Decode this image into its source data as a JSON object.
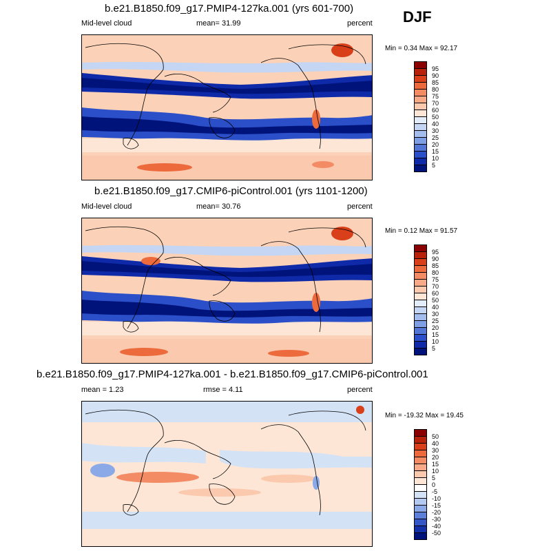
{
  "season": "DJF",
  "panels": [
    {
      "title": "b.e21.B1850.f09_g17.PMIP4-127ka.001 (yrs 601-700)",
      "left_label": "Mid-level cloud",
      "center_label": "mean=  31.99",
      "units": "percent",
      "minmax": "Min =  0.34 Max =  92.17",
      "colorbar": {
        "labels": [
          "95",
          "90",
          "85",
          "80",
          "75",
          "70",
          "60",
          "50",
          "40",
          "30",
          "25",
          "20",
          "15",
          "10",
          "5"
        ],
        "colors": [
          "#8b0000",
          "#b8210a",
          "#d9401a",
          "#ec6a3c",
          "#f38b64",
          "#f7a988",
          "#fbc9ae",
          "#fde6d6",
          "#e3edf9",
          "#c4d6f3",
          "#a3bdec",
          "#7e9fe4",
          "#5176d6",
          "#2b4fc8",
          "#0e2aa9",
          "#00137a"
        ]
      }
    },
    {
      "title": "b.e21.B1850.f09_g17.CMIP6-piControl.001 (yrs 1101-1200)",
      "left_label": "Mid-level cloud",
      "center_label": "mean=  30.76",
      "units": "percent",
      "minmax": "Min =  0.12 Max =  91.57",
      "colorbar": {
        "labels": [
          "95",
          "90",
          "85",
          "80",
          "75",
          "70",
          "60",
          "50",
          "40",
          "30",
          "25",
          "20",
          "15",
          "10",
          "5"
        ],
        "colors": [
          "#8b0000",
          "#b8210a",
          "#d9401a",
          "#ec6a3c",
          "#f38b64",
          "#f7a988",
          "#fbc9ae",
          "#fde6d6",
          "#e3edf9",
          "#c4d6f3",
          "#a3bdec",
          "#7e9fe4",
          "#5176d6",
          "#2b4fc8",
          "#0e2aa9",
          "#00137a"
        ]
      }
    },
    {
      "title": "b.e21.B1850.f09_g17.PMIP4-127ka.001 - b.e21.B1850.f09_g17.CMIP6-piControl.001",
      "left_label": "mean =   1.23",
      "center_label": "rmse =   4.11",
      "units": "percent",
      "minmax": "Min = -19.32 Max =  19.45",
      "colorbar": {
        "labels": [
          "50",
          "40",
          "30",
          "20",
          "15",
          "10",
          "5",
          "0",
          "-5",
          "-10",
          "-15",
          "-20",
          "-30",
          "-40",
          "-50"
        ],
        "colors": [
          "#8b0000",
          "#b8210a",
          "#d9401a",
          "#ec6a3c",
          "#f38b64",
          "#f7a988",
          "#fbc9ae",
          "#fde6d6",
          "#ffffff",
          "#d4e2f6",
          "#b3c9ef",
          "#8aa9e6",
          "#5c80da",
          "#3456c6",
          "#1230a8",
          "#00137a"
        ]
      }
    }
  ]
}
